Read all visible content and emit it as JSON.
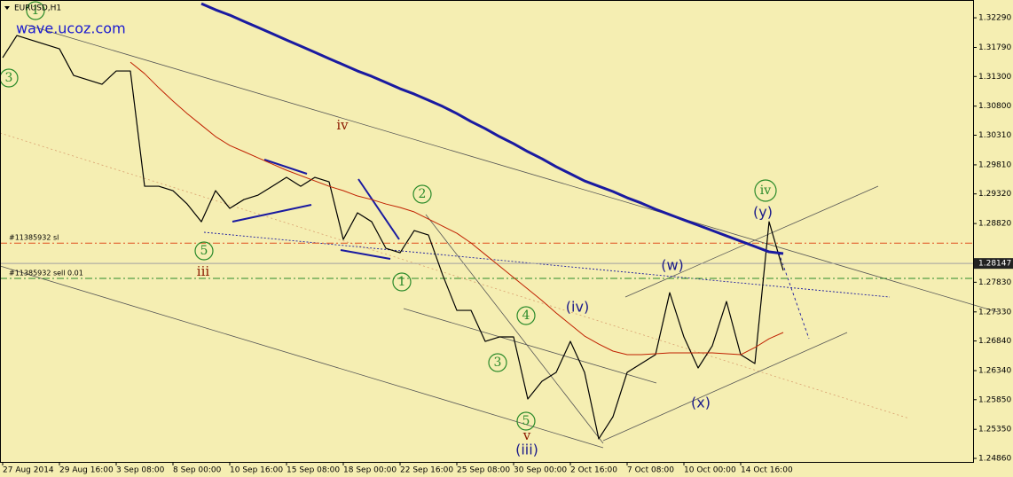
{
  "chart_data": {
    "type": "line",
    "title": "EURUSD,H1",
    "watermark": "wave.ucoz.com",
    "categories": [
      "27 Aug 2014",
      null,
      null,
      null,
      "29 Aug 16:00",
      null,
      null,
      null,
      "3 Sep 08:00",
      null,
      null,
      null,
      "8 Sep 00:00",
      null,
      null,
      null,
      "10 Sep 16:00",
      null,
      null,
      null,
      "15 Sep 08:00",
      null,
      null,
      null,
      "18 Sep 00:00",
      null,
      null,
      null,
      "22 Sep 16:00",
      null,
      null,
      null,
      "25 Sep 08:00",
      null,
      null,
      null,
      "30 Sep 00:00",
      null,
      null,
      null,
      "2 Oct 16:00",
      null,
      null,
      null,
      "7 Oct 08:00",
      null,
      null,
      null,
      "10 Oct 00:00",
      null,
      null,
      null,
      "14 Oct 16:00",
      null,
      null,
      null
    ],
    "series": [
      {
        "color": "#000000",
        "values": [
          1.31617,
          1.31991,
          1.31916,
          1.31841,
          1.31767,
          1.31318,
          1.31243,
          1.31169,
          1.31393,
          1.31393,
          1.29449,
          1.29449,
          1.29375,
          1.2915,
          1.28851,
          1.29375,
          1.29076,
          1.29225,
          1.293,
          1.29449,
          1.29599,
          1.29449,
          1.29599,
          1.29524,
          1.28552,
          1.29001,
          1.28851,
          1.28403,
          1.28328,
          1.28702,
          1.28627,
          1.27954,
          1.27356,
          1.27356,
          1.26833,
          1.26908,
          1.26908,
          1.25861,
          1.2616,
          1.2631,
          1.26833,
          1.2631,
          1.25189,
          1.25562,
          1.2631,
          1.26459,
          1.26609,
          1.27655,
          1.26908,
          1.26385,
          1.26758,
          1.27506,
          1.26609,
          1.26459,
          1.28851,
          1.28029
        ]
      },
      {
        "color": "#1a1aa0",
        "values": [
          null,
          null,
          null,
          null,
          null,
          null,
          null,
          null,
          null,
          null,
          null,
          null,
          null,
          null,
          1.32529,
          1.32425,
          1.32335,
          1.3223,
          1.32126,
          1.32021,
          1.31916,
          1.31812,
          1.31707,
          1.31602,
          1.31498,
          1.31393,
          1.31303,
          1.31199,
          1.31094,
          1.31004,
          1.309,
          1.30795,
          1.30675,
          1.30541,
          1.30421,
          1.30287,
          1.30167,
          1.30033,
          1.29913,
          1.29778,
          1.29659,
          1.29539,
          1.29449,
          1.2936,
          1.29255,
          1.29165,
          1.29061,
          1.28971,
          1.28881,
          1.28792,
          1.28702,
          1.28612,
          1.28523,
          1.28433,
          1.28343,
          1.28313
        ]
      },
      {
        "color": "#c02000",
        "values": [
          null,
          null,
          null,
          null,
          null,
          null,
          null,
          null,
          null,
          1.31542,
          1.31348,
          1.31109,
          1.30885,
          1.30675,
          1.30481,
          1.30287,
          1.30137,
          1.30033,
          1.29928,
          1.29823,
          1.29719,
          1.29629,
          1.29539,
          1.29449,
          1.29375,
          1.29285,
          1.29225,
          1.2915,
          1.29091,
          1.29016,
          1.28896,
          1.28777,
          1.28657,
          1.28493,
          1.28298,
          1.28104,
          1.2791,
          1.27715,
          1.27521,
          1.27312,
          1.27117,
          1.26923,
          1.26788,
          1.26669,
          1.26609,
          1.26609,
          1.26624,
          1.26639,
          1.26639,
          1.26639,
          1.26639,
          1.26624,
          1.26609,
          1.26729,
          1.26878,
          1.26983
        ]
      }
    ],
    "ylim": [
      1.248,
      1.3259
    ],
    "yticks": [
      {
        "value": 1.2486,
        "label": "1.24860"
      },
      {
        "value": 1.2535,
        "label": "1.25350"
      },
      {
        "value": 1.2585,
        "label": "1.25850"
      },
      {
        "value": 1.2634,
        "label": "1.26340"
      },
      {
        "value": 1.2684,
        "label": "1.26840"
      },
      {
        "value": 1.2733,
        "label": "1.27330"
      },
      {
        "value": 1.2783,
        "label": "1.27830"
      },
      {
        "value": 1.2882,
        "label": "1.28820"
      },
      {
        "value": 1.2932,
        "label": "1.29320"
      },
      {
        "value": 1.2981,
        "label": "1.29810"
      },
      {
        "value": 1.3031,
        "label": "1.30310"
      },
      {
        "value": 1.308,
        "label": "1.30800"
      },
      {
        "value": 1.313,
        "label": "1.31300"
      },
      {
        "value": 1.3179,
        "label": "1.31790"
      },
      {
        "value": 1.3229,
        "label": "1.32290"
      }
    ],
    "grid": false,
    "last_price": 1.28147,
    "levels": [
      {
        "label": "#11385932 sl",
        "value": 1.2849,
        "color": "#e05020"
      },
      {
        "label": "#11385932 sell 0.01",
        "value": 1.27895,
        "color": "#2a8a2a"
      }
    ],
    "annotations": [
      "1",
      "3",
      "5",
      "iii",
      "iv",
      "2",
      "1",
      "4",
      "3",
      "5",
      "v",
      "(iii)",
      "(iv)",
      "(w)",
      "(x)",
      "(y)",
      "iv"
    ]
  }
}
